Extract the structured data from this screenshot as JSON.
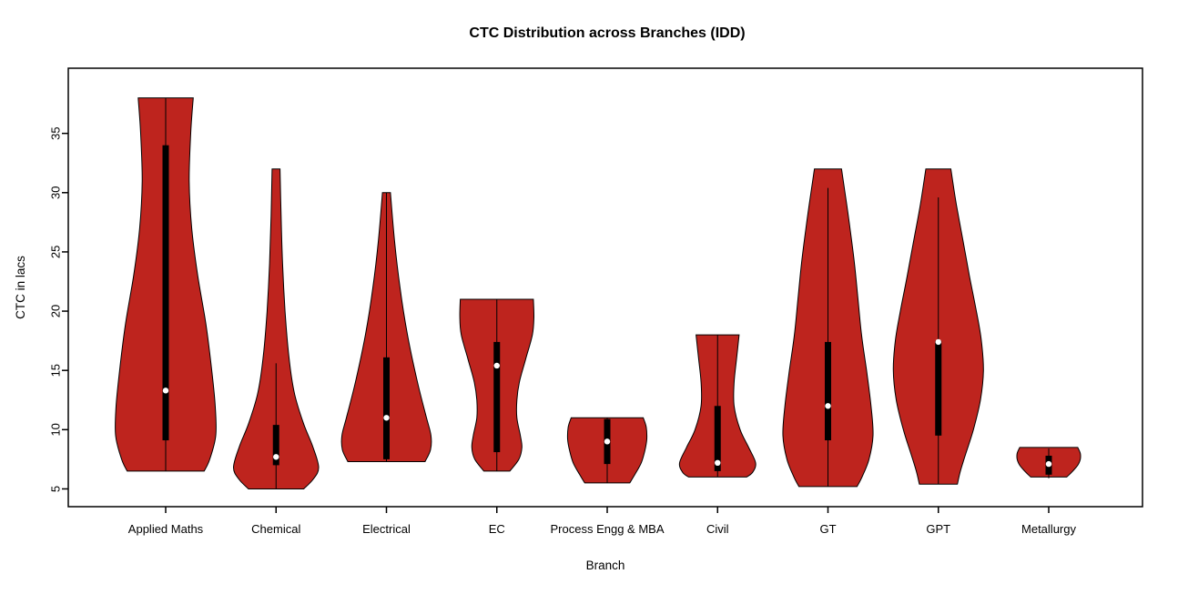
{
  "chart_data": {
    "type": "violin",
    "title": "CTC Distribution across Branches (IDD)",
    "xlabel": "Branch",
    "ylabel": "CTC in lacs",
    "ylim": [
      3.5,
      40.5
    ],
    "yticks": [
      5,
      10,
      15,
      20,
      25,
      30,
      35
    ],
    "grid": false,
    "legend": "none",
    "violin_fill": "#BE241E",
    "violin_stroke": "#000000",
    "box_color": "#000000",
    "median_dot_color": "#ffffff",
    "branches": [
      {
        "name": "Applied Maths",
        "min": 6.5,
        "max": 38,
        "q1": 9.1,
        "q3": 34.0,
        "median": 13.3,
        "whisker_low": 6.5,
        "whisker_high": 38,
        "profile": [
          [
            38,
            0.55
          ],
          [
            35,
            0.5
          ],
          [
            31,
            0.47
          ],
          [
            27,
            0.52
          ],
          [
            23,
            0.64
          ],
          [
            19,
            0.8
          ],
          [
            15,
            0.92
          ],
          [
            12,
            0.99
          ],
          [
            9.5,
            1.0
          ],
          [
            7.5,
            0.88
          ],
          [
            6.5,
            0.77
          ]
        ]
      },
      {
        "name": "Chemical",
        "min": 5.0,
        "max": 32,
        "q1": 7.0,
        "q3": 10.4,
        "median": 7.7,
        "whisker_low": 5.0,
        "whisker_high": 15.6,
        "profile": [
          [
            32,
            0.08
          ],
          [
            28,
            0.1
          ],
          [
            24,
            0.13
          ],
          [
            20,
            0.18
          ],
          [
            16,
            0.26
          ],
          [
            13,
            0.37
          ],
          [
            10.5,
            0.55
          ],
          [
            8.5,
            0.74
          ],
          [
            6.8,
            0.85
          ],
          [
            5.8,
            0.74
          ],
          [
            5,
            0.55
          ]
        ]
      },
      {
        "name": "Electrical",
        "min": 7.3,
        "max": 30,
        "q1": 7.5,
        "q3": 16.1,
        "median": 11.0,
        "whisker_low": 7.3,
        "whisker_high": 30,
        "profile": [
          [
            30,
            0.08
          ],
          [
            26,
            0.16
          ],
          [
            22,
            0.27
          ],
          [
            18,
            0.42
          ],
          [
            14,
            0.62
          ],
          [
            11,
            0.8
          ],
          [
            9.5,
            0.89
          ],
          [
            8.3,
            0.88
          ],
          [
            7.3,
            0.77
          ]
        ]
      },
      {
        "name": "EC",
        "min": 6.5,
        "max": 21,
        "q1": 8.1,
        "q3": 17.4,
        "median": 15.4,
        "whisker_low": 6.5,
        "whisker_high": 21,
        "profile": [
          [
            21,
            0.73
          ],
          [
            19.5,
            0.74
          ],
          [
            18,
            0.71
          ],
          [
            16,
            0.58
          ],
          [
            14,
            0.45
          ],
          [
            12.5,
            0.4
          ],
          [
            11,
            0.4
          ],
          [
            9.5,
            0.47
          ],
          [
            8.5,
            0.5
          ],
          [
            7.5,
            0.44
          ],
          [
            6.5,
            0.26
          ]
        ]
      },
      {
        "name": "Process Engg & MBA",
        "min": 5.5,
        "max": 11,
        "q1": 7.1,
        "q3": 10.9,
        "median": 9.0,
        "whisker_low": 5.5,
        "whisker_high": 11,
        "profile": [
          [
            11,
            0.72
          ],
          [
            10.2,
            0.78
          ],
          [
            9.2,
            0.79
          ],
          [
            8.2,
            0.75
          ],
          [
            7.2,
            0.68
          ],
          [
            6.2,
            0.55
          ],
          [
            5.5,
            0.45
          ]
        ]
      },
      {
        "name": "Civil",
        "min": 6.0,
        "max": 18,
        "q1": 6.5,
        "q3": 12.0,
        "median": 7.2,
        "whisker_low": 6.0,
        "whisker_high": 18,
        "profile": [
          [
            18,
            0.43
          ],
          [
            16,
            0.38
          ],
          [
            14,
            0.33
          ],
          [
            12,
            0.33
          ],
          [
            10,
            0.45
          ],
          [
            8.5,
            0.62
          ],
          [
            7.2,
            0.76
          ],
          [
            6.4,
            0.7
          ],
          [
            6,
            0.58
          ]
        ]
      },
      {
        "name": "GT",
        "min": 5.2,
        "max": 32,
        "q1": 9.1,
        "q3": 17.4,
        "median": 12.0,
        "whisker_low": 5.2,
        "whisker_high": 30.4,
        "profile": [
          [
            32,
            0.27
          ],
          [
            30,
            0.34
          ],
          [
            27,
            0.44
          ],
          [
            24,
            0.53
          ],
          [
            21,
            0.6
          ],
          [
            18,
            0.67
          ],
          [
            15,
            0.77
          ],
          [
            12,
            0.86
          ],
          [
            9.5,
            0.9
          ],
          [
            7.5,
            0.82
          ],
          [
            6,
            0.68
          ],
          [
            5.2,
            0.58
          ]
        ]
      },
      {
        "name": "GPT",
        "min": 5.4,
        "max": 32,
        "q1": 9.5,
        "q3": 17.5,
        "median": 17.4,
        "whisker_low": 5.4,
        "whisker_high": 29.6,
        "profile": [
          [
            32,
            0.25
          ],
          [
            29,
            0.36
          ],
          [
            26,
            0.49
          ],
          [
            23,
            0.62
          ],
          [
            20,
            0.76
          ],
          [
            17.5,
            0.86
          ],
          [
            15,
            0.9
          ],
          [
            12.5,
            0.84
          ],
          [
            10,
            0.7
          ],
          [
            8,
            0.55
          ],
          [
            6.5,
            0.44
          ],
          [
            5.4,
            0.38
          ]
        ]
      },
      {
        "name": "Metallurgy",
        "min": 5.9,
        "max": 8.5,
        "q1": 6.2,
        "q3": 7.8,
        "median": 7.1,
        "whisker_low": 5.9,
        "whisker_high": 8.4,
        "profile": [
          [
            8.5,
            0.58
          ],
          [
            8,
            0.63
          ],
          [
            7.5,
            0.63
          ],
          [
            7,
            0.58
          ],
          [
            6.5,
            0.48
          ],
          [
            6,
            0.36
          ]
        ]
      }
    ]
  }
}
